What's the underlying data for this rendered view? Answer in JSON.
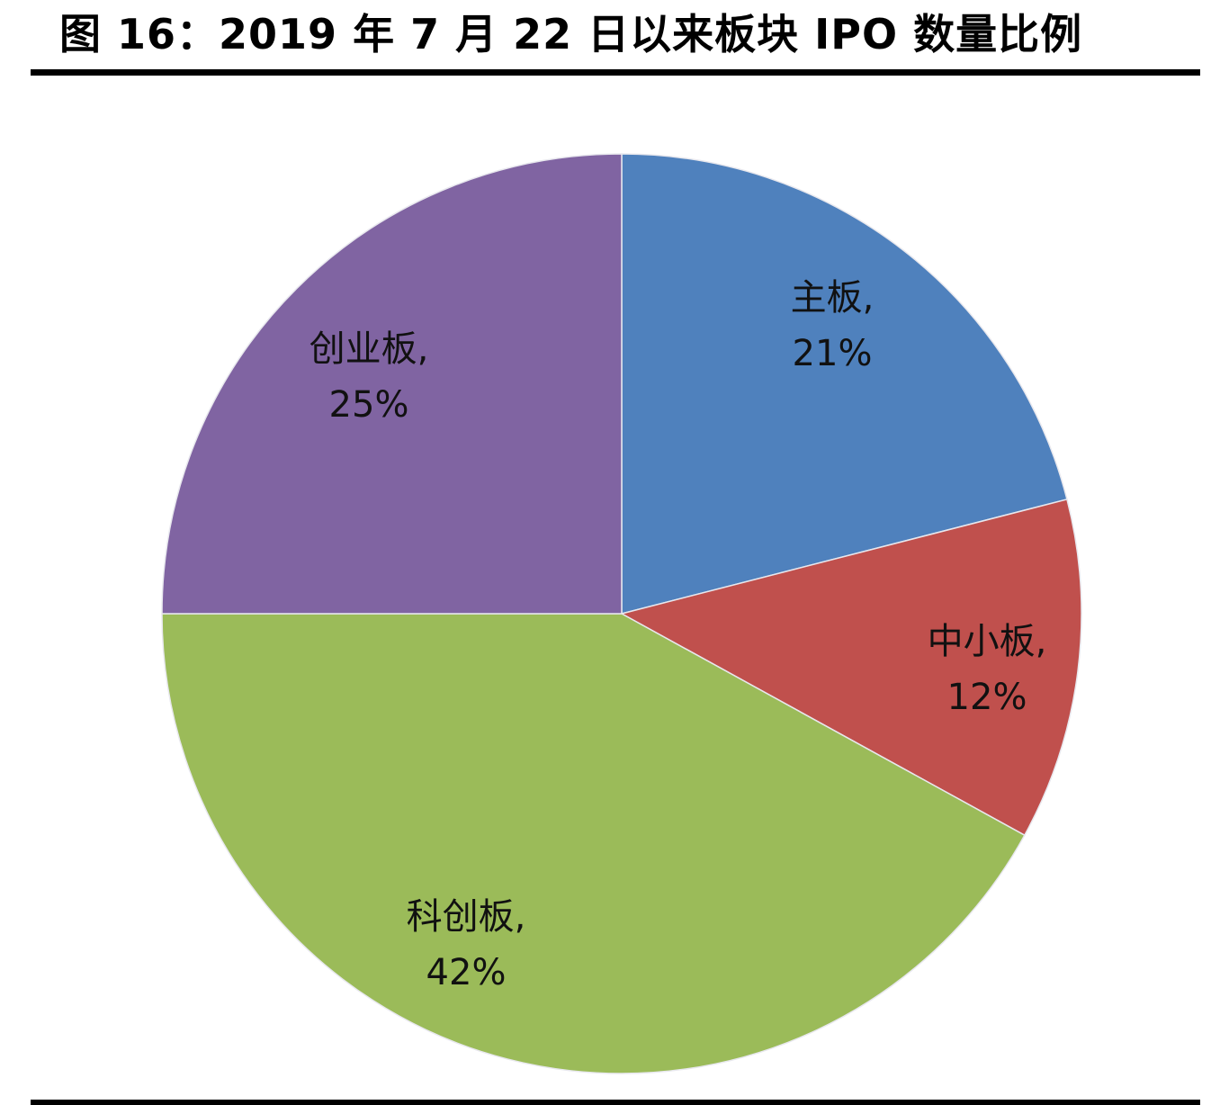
{
  "header": {
    "title": "图 16：2019 年 7 月 22 日以来板块 IPO 数量比例"
  },
  "chart_data": {
    "type": "pie",
    "title": "图 16：2019 年 7 月 22 日以来板块 IPO 数量比例",
    "start_angle_deg": 0,
    "direction": "clockwise",
    "legend": "none",
    "slices": [
      {
        "name": "主板",
        "value": 21,
        "label": "主板,",
        "pct": "21%",
        "color": "#4F81BD"
      },
      {
        "name": "中小板",
        "value": 12,
        "label": "中小板,",
        "pct": "12%",
        "color": "#C0504D"
      },
      {
        "name": "科创板",
        "value": 42,
        "label": "科创板,",
        "pct": "42%",
        "color": "#9BBB59"
      },
      {
        "name": "创业板",
        "value": 25,
        "label": "创业板,",
        "pct": "25%",
        "color": "#8064A2"
      }
    ]
  }
}
